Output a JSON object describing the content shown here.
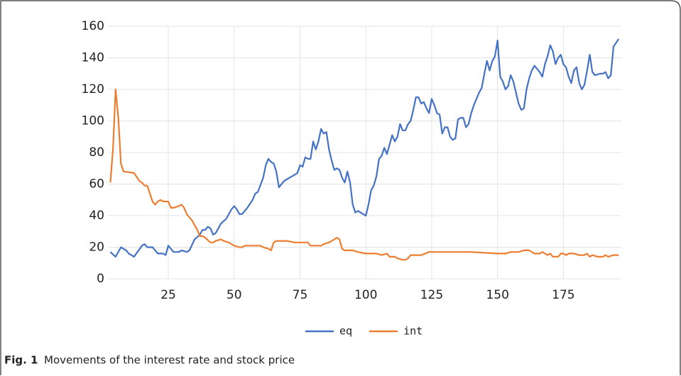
{
  "chart_data": {
    "type": "line",
    "caption": {
      "label": "Fig. 1",
      "text": "Movements of the interest rate and stock price"
    },
    "xlim": [
      0,
      197
    ],
    "xticks": [
      25,
      50,
      75,
      100,
      125,
      150,
      175
    ],
    "ylim": [
      0,
      160
    ],
    "yticks": [
      0,
      20,
      40,
      60,
      80,
      100,
      120,
      140,
      160
    ],
    "grid": true,
    "legend": "bottom",
    "series": [
      {
        "name": "eq",
        "color": "#4472c4",
        "x": [
          3,
          5,
          7,
          9,
          10,
          12,
          15,
          16,
          17,
          19,
          21,
          23,
          24,
          25,
          27,
          29,
          30,
          32,
          33,
          35,
          37,
          38,
          39,
          40,
          41,
          42,
          43,
          44,
          45,
          47,
          49,
          50,
          51,
          52,
          53,
          55,
          57,
          58,
          59,
          61,
          62,
          63,
          64,
          65,
          66,
          67,
          68,
          69,
          71,
          72,
          73,
          74,
          75,
          76,
          77,
          78,
          79,
          80,
          81,
          82,
          83,
          84,
          85,
          86,
          87,
          88,
          89,
          90,
          91,
          92,
          93,
          94,
          95,
          96,
          97,
          99,
          100,
          101,
          102,
          103,
          104,
          105,
          106,
          107,
          108,
          109,
          110,
          111,
          112,
          113,
          114,
          115,
          116,
          117,
          118,
          119,
          120,
          121,
          122,
          123,
          124,
          125,
          126,
          127,
          128,
          129,
          130,
          131,
          132,
          133,
          134,
          135,
          136,
          137,
          138,
          139,
          140,
          141,
          142,
          143,
          144,
          145,
          146,
          147,
          148,
          149,
          150,
          151,
          152,
          153,
          154,
          155,
          156,
          157,
          158,
          159,
          160,
          161,
          162,
          163,
          164,
          165,
          166,
          167,
          168,
          169,
          170,
          171,
          172,
          173,
          174,
          175,
          176,
          177,
          178,
          179,
          180,
          181,
          182,
          183,
          184,
          185,
          186,
          187,
          189,
          190,
          191,
          192,
          193,
          194,
          196
        ],
        "values": [
          17,
          14,
          20,
          18,
          16,
          14,
          21,
          22,
          20,
          20,
          16,
          16,
          15,
          21,
          17,
          17,
          18,
          17,
          18,
          25,
          28,
          31,
          31,
          33,
          32,
          28,
          29,
          32,
          35,
          38,
          44,
          46,
          44,
          41,
          41,
          45,
          50,
          54,
          55,
          64,
          72,
          76,
          74,
          73,
          68,
          58,
          60,
          62,
          64,
          65,
          66,
          67,
          72,
          71,
          77,
          76,
          76,
          87,
          82,
          87,
          95,
          92,
          93,
          82,
          75,
          69,
          70,
          69,
          64,
          61,
          68,
          61,
          47,
          42,
          43,
          41,
          40,
          47,
          56,
          59,
          65,
          76,
          78,
          83,
          79,
          85,
          91,
          87,
          90,
          98,
          94,
          94,
          98,
          100,
          107,
          115,
          115,
          111,
          112,
          108,
          105,
          114,
          110,
          105,
          104,
          92,
          96,
          96,
          90,
          88,
          89,
          101,
          102,
          102,
          96,
          98,
          105,
          110,
          114,
          118,
          121,
          130,
          138,
          132,
          138,
          141,
          151,
          128,
          125,
          120,
          122,
          129,
          125,
          118,
          111,
          107,
          108,
          120,
          127,
          132,
          135,
          133,
          131,
          128,
          136,
          141,
          148,
          144,
          136,
          140,
          142,
          136,
          134,
          128,
          124,
          132,
          134,
          124,
          120,
          123,
          132,
          142,
          131,
          129,
          130,
          130,
          131,
          127,
          129,
          147,
          152
        ]
      },
      {
        "name": "int",
        "color": "#ed7d31",
        "x": [
          3,
          4,
          5,
          6,
          7,
          8,
          12,
          14,
          15,
          16,
          17,
          18,
          19,
          20,
          21,
          22,
          23,
          25,
          26,
          27,
          29,
          30,
          31,
          32,
          34,
          35,
          36,
          37,
          38,
          39,
          41,
          42,
          43,
          45,
          46,
          48,
          50,
          52,
          53,
          54,
          56,
          60,
          61,
          63,
          64,
          65,
          66,
          70,
          73,
          78,
          79,
          83,
          84,
          86,
          88,
          89,
          90,
          91,
          92,
          95,
          97,
          100,
          104,
          106,
          108,
          109,
          111,
          112,
          114,
          115,
          116,
          117,
          121,
          124,
          130,
          140,
          150,
          153,
          155,
          158,
          160,
          162,
          163,
          164,
          166,
          167,
          168,
          169,
          170,
          171,
          172,
          173,
          174,
          175,
          176,
          177,
          179,
          181,
          183,
          184,
          185,
          186,
          188,
          190,
          191,
          192,
          194,
          196
        ],
        "values": [
          61,
          82,
          120,
          102,
          73,
          68,
          67,
          62,
          61,
          59,
          59,
          54,
          49,
          47,
          49,
          50,
          49,
          49,
          45,
          45,
          46,
          47,
          45,
          41,
          37,
          34,
          31,
          27,
          27,
          26,
          23,
          23,
          24,
          25,
          24,
          23,
          21,
          20,
          20,
          21,
          21,
          21,
          20,
          19,
          18,
          23,
          24,
          24,
          23,
          23,
          21,
          21,
          22,
          23,
          25,
          26,
          25,
          19,
          18,
          18,
          17,
          16,
          16,
          15,
          16,
          14,
          14,
          13,
          12,
          12,
          13,
          15,
          15,
          17,
          17,
          17,
          16,
          16,
          17,
          17,
          18,
          18,
          17,
          16,
          16,
          17,
          16,
          15,
          16,
          14,
          14,
          14,
          16,
          16,
          15,
          16,
          16,
          15,
          15,
          16,
          14,
          15,
          14,
          14,
          15,
          14,
          15,
          15
        ]
      }
    ]
  }
}
